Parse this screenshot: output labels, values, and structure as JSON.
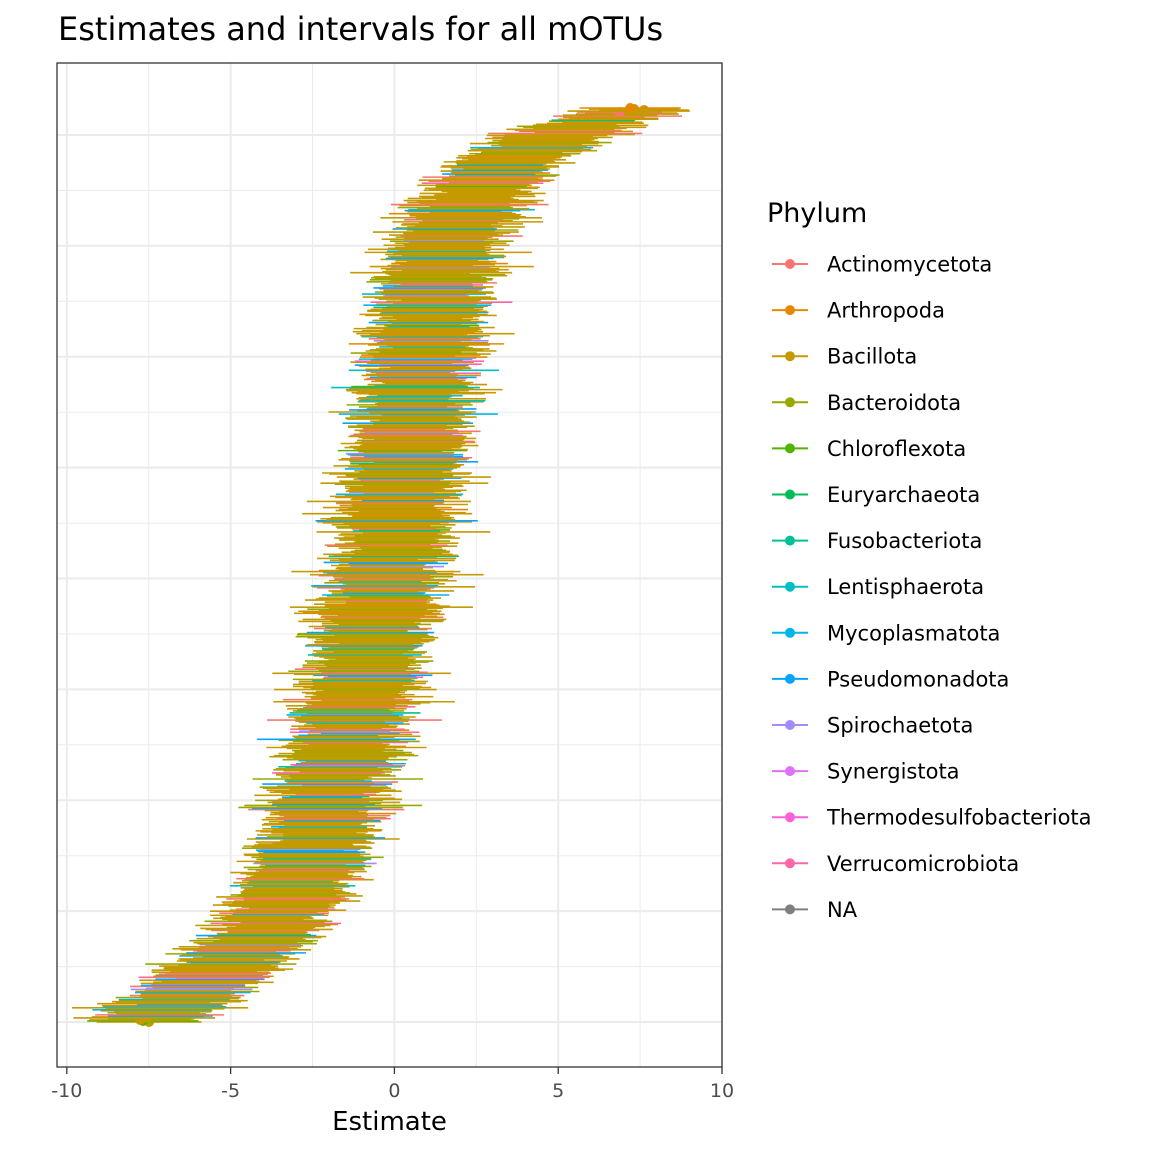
{
  "chart_data": {
    "type": "forest",
    "title": "Estimates and intervals for all mOTUs",
    "xlabel": "Estimate",
    "ylabel": "",
    "xlim": [
      -10.3,
      10
    ],
    "x_ticks": [
      -10,
      -5,
      0,
      5,
      10
    ],
    "x_tick_labels": [
      "-10",
      "-5",
      "0",
      "5",
      "10"
    ],
    "n_rows": 900,
    "grid": true,
    "legend": {
      "title": "Phylum",
      "position": "right",
      "entries": [
        {
          "name": "Actinomycetota",
          "color": "#F8766D"
        },
        {
          "name": "Arthropoda",
          "color": "#E38900"
        },
        {
          "name": "Bacillota",
          "color": "#C49A00"
        },
        {
          "name": "Bacteroidota",
          "color": "#99A800"
        },
        {
          "name": "Chloroflexota",
          "color": "#53B400"
        },
        {
          "name": "Euryarchaeota",
          "color": "#00BC56"
        },
        {
          "name": "Fusobacteriota",
          "color": "#00C094"
        },
        {
          "name": "Lentisphaerota",
          "color": "#00BFC4"
        },
        {
          "name": "Mycoplasmatota",
          "color": "#00B6EB"
        },
        {
          "name": "Pseudomonadota",
          "color": "#06A4FF"
        },
        {
          "name": "Spirochaetota",
          "color": "#A58AFF"
        },
        {
          "name": "Synergistota",
          "color": "#DF70F8"
        },
        {
          "name": "Thermodesulfobacteriota",
          "color": "#FB61D7"
        },
        {
          "name": "Verrucomicrobiota",
          "color": "#FF66A8"
        },
        {
          "name": "NA",
          "color": "#7F7F7F"
        }
      ]
    },
    "trend_estimate": {
      "row_fraction": [
        0.0,
        0.02,
        0.05,
        0.1,
        0.15,
        0.2,
        0.3,
        0.4,
        0.5,
        0.6,
        0.7,
        0.8,
        0.85,
        0.9,
        0.95,
        0.98,
        1.0
      ],
      "estimate": [
        -7.8,
        -6.8,
        -5.5,
        -3.9,
        -3.0,
        -2.4,
        -1.5,
        -0.8,
        -0.2,
        0.3,
        0.7,
        1.2,
        1.6,
        2.3,
        3.8,
        5.6,
        7.5
      ]
    },
    "half_width_range": [
      1.2,
      2.0
    ],
    "phylum_mix": {
      "Bacillota": 0.62,
      "Bacteroidota": 0.14,
      "Actinomycetota": 0.07,
      "Pseudomonadota": 0.04,
      "Verrucomicrobiota": 0.03,
      "Mycoplasmatota": 0.03,
      "Lentisphaerota": 0.02,
      "Arthropoda": 0.02,
      "Chloroflexota": 0.01,
      "Spirochaetota": 0.01,
      "Fusobacteriota": 0.01
    }
  }
}
